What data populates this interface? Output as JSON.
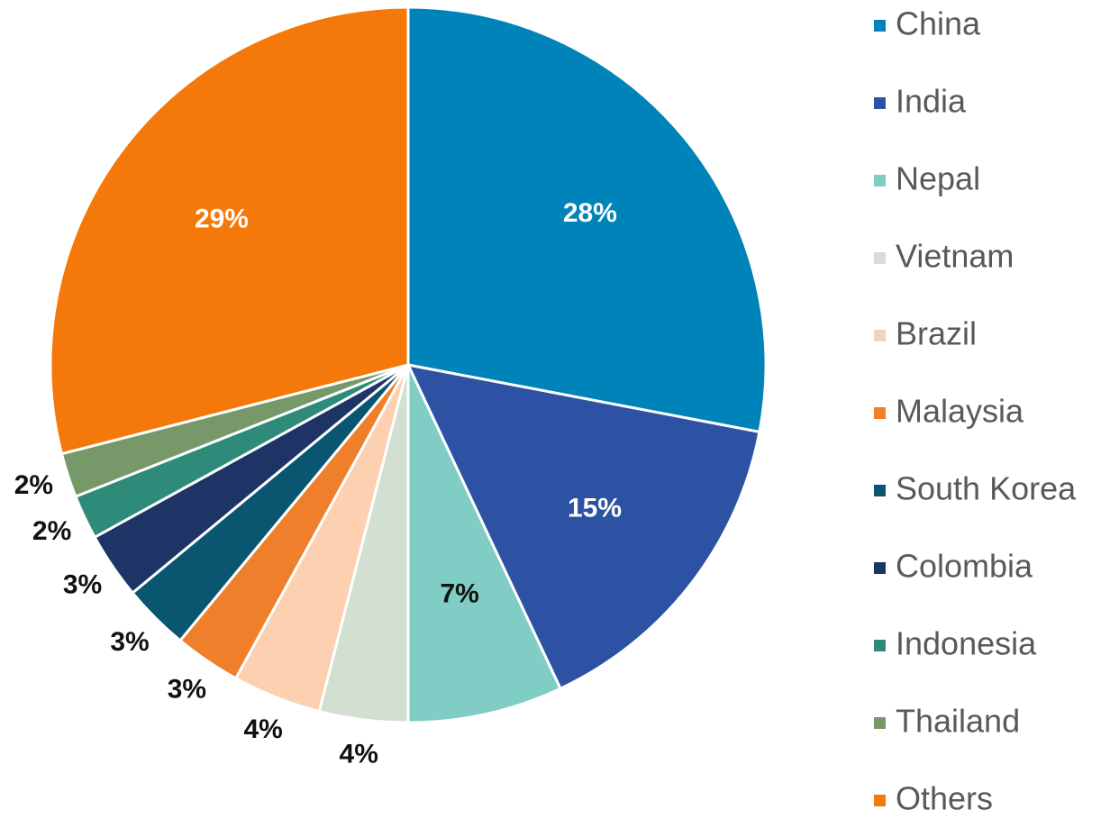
{
  "chart_data": {
    "type": "pie",
    "categories": [
      "China",
      "India",
      "Nepal",
      "Vietnam",
      "Brazil",
      "Malaysia",
      "South Korea",
      "Colombia",
      "Indonesia",
      "Thailand",
      "Others"
    ],
    "values": [
      28,
      15,
      7,
      4,
      4,
      3,
      3,
      3,
      2,
      2,
      29
    ],
    "value_labels": [
      "28%",
      "15%",
      "7%",
      "4%",
      "4%",
      "3%",
      "3%",
      "3%",
      "2%",
      "2%",
      "29%"
    ],
    "colors": [
      "#0083b8",
      "#2e52a3",
      "#7fcdc4",
      "#d3dfd0",
      "#fcd0b0",
      "#f07f2c",
      "#0a5670",
      "#1f3466",
      "#2e8b7a",
      "#77996a",
      "#f5780a"
    ],
    "legend": "right"
  }
}
